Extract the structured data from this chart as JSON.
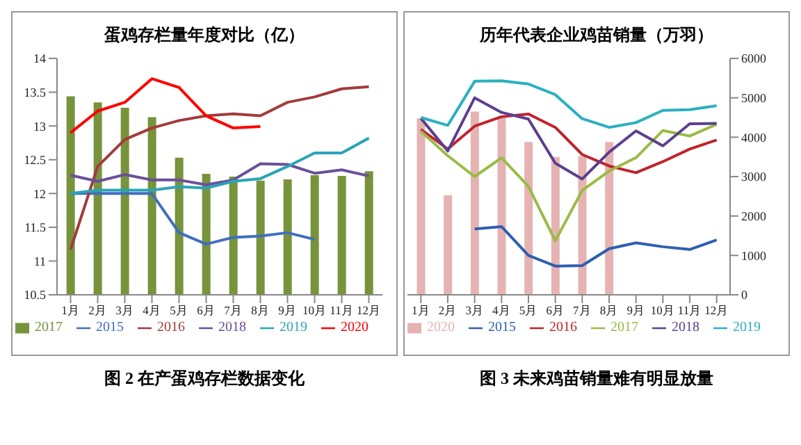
{
  "chart_data": [
    {
      "type": "bar",
      "title": "蛋鸡存栏量年度对比（亿）",
      "categories": [
        "1月",
        "2月",
        "3月",
        "4月",
        "5月",
        "6月",
        "7月",
        "8月",
        "9月",
        "10月",
        "11月",
        "12月"
      ],
      "ylim": [
        10.5,
        14
      ],
      "yticks": [
        10.5,
        11,
        11.5,
        12,
        12.5,
        13,
        13.5,
        14
      ],
      "legend": "bottom",
      "annotations": [
        "图 2 在产蛋鸡存栏数据变化"
      ],
      "series": [
        {
          "name": "2017",
          "color": "#77933c",
          "values": [
            13.44,
            13.35,
            13.27,
            13.13,
            12.53,
            12.29,
            12.25,
            12.19,
            12.21,
            12.27,
            12.26,
            12.33
          ]
        },
        {
          "name": "2015",
          "type": "line",
          "color": "#3f6fbf",
          "values": [
            12.0,
            12.0,
            12.0,
            12.0,
            11.42,
            11.25,
            11.35,
            11.37,
            11.42,
            11.32,
            null,
            null
          ]
        },
        {
          "name": "2016",
          "type": "line",
          "color": "#a33b3b",
          "values": [
            11.17,
            12.4,
            12.8,
            12.97,
            13.08,
            13.15,
            13.18,
            13.15,
            13.35,
            13.43,
            13.55,
            13.58
          ]
        },
        {
          "name": "2018",
          "type": "line",
          "color": "#6b4f9a",
          "values": [
            12.27,
            12.18,
            12.28,
            12.2,
            12.2,
            12.13,
            12.2,
            12.44,
            12.43,
            12.3,
            12.35,
            12.26
          ]
        },
        {
          "name": "2019",
          "type": "line",
          "color": "#2aa3b8",
          "values": [
            12.0,
            12.05,
            12.05,
            12.05,
            12.1,
            12.08,
            12.18,
            12.22,
            12.4,
            12.6,
            12.6,
            12.82
          ]
        },
        {
          "name": "2020",
          "type": "line",
          "color": "#ff0000",
          "values": [
            12.9,
            13.22,
            13.35,
            13.7,
            13.57,
            13.15,
            12.97,
            12.99,
            null,
            null,
            null,
            null
          ]
        }
      ]
    },
    {
      "type": "bar",
      "title": "历年代表企业鸡苗销量（万羽）",
      "categories": [
        "1月",
        "2月",
        "3月",
        "4月",
        "5月",
        "6月",
        "7月",
        "8月",
        "9月",
        "10月",
        "11月",
        "12月"
      ],
      "y2lim": [
        0,
        6000
      ],
      "y2ticks": [
        0,
        1000,
        2000,
        3000,
        4000,
        5000,
        6000
      ],
      "legend": "bottom",
      "annotations": [
        "图 3 未来鸡苗销量难有明显放量"
      ],
      "series": [
        {
          "name": "2020",
          "axis": "y2",
          "color": "#e6b3b3",
          "values": [
            4480,
            2530,
            4650,
            4530,
            3880,
            3500,
            3520,
            3880,
            null,
            null,
            null,
            null
          ]
        },
        {
          "name": "2015",
          "type": "line",
          "axis": "y2",
          "color": "#2e5fb0",
          "values": [
            null,
            null,
            1670,
            1730,
            1000,
            730,
            740,
            1170,
            1320,
            1220,
            1150,
            1390
          ]
        },
        {
          "name": "2016",
          "type": "line",
          "axis": "y2",
          "color": "#c0232b",
          "values": [
            4200,
            3700,
            4280,
            4520,
            4590,
            4250,
            3560,
            3270,
            3100,
            3380,
            3700,
            3930
          ]
        },
        {
          "name": "2017",
          "type": "line",
          "axis": "y2",
          "color": "#99bb44",
          "values": [
            4150,
            3530,
            3000,
            3480,
            2750,
            1370,
            2650,
            3140,
            3480,
            4170,
            4030,
            4330
          ]
        },
        {
          "name": "2018",
          "type": "line",
          "axis": "y2",
          "color": "#5b3f8f",
          "values": [
            4480,
            3650,
            5000,
            4630,
            4460,
            3340,
            2940,
            3620,
            4160,
            3780,
            4340,
            4350
          ]
        },
        {
          "name": "2019",
          "type": "line",
          "axis": "y2",
          "color": "#2ab0c0",
          "values": [
            4500,
            4300,
            5420,
            5430,
            5350,
            5080,
            4470,
            4250,
            4370,
            4680,
            4700,
            4800
          ]
        }
      ]
    }
  ]
}
